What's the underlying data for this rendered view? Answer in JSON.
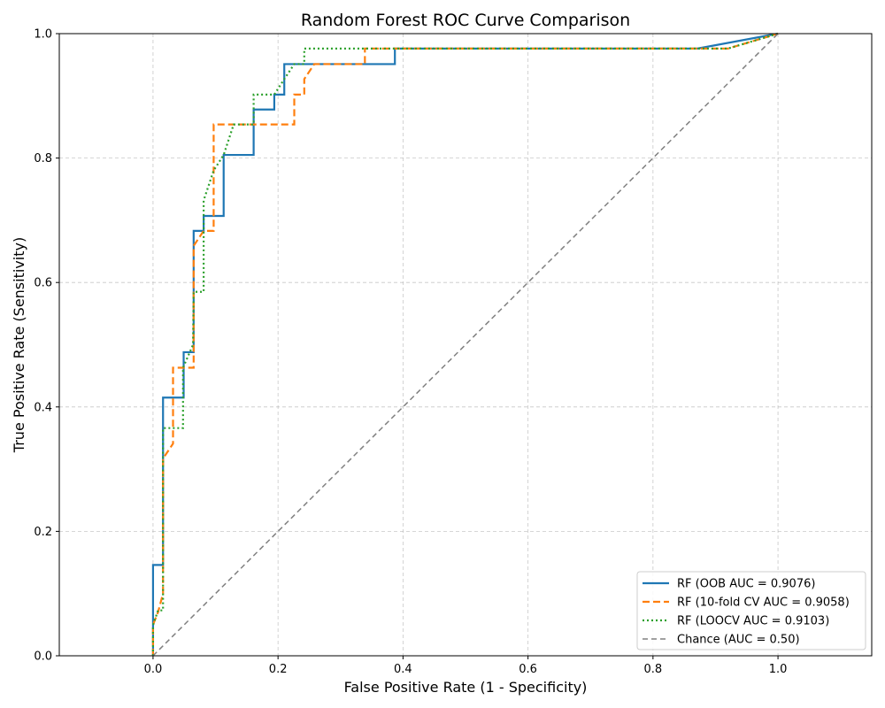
{
  "chart_data": {
    "type": "line",
    "title": "Random Forest ROC Curve Comparison",
    "xlabel": "False Positive Rate (1 - Specificity)",
    "ylabel": "True Positive Rate (Sensitivity)",
    "xlim": [
      -0.15,
      1.15
    ],
    "ylim": [
      0.0,
      1.0
    ],
    "xticks": [
      0.0,
      0.2,
      0.4,
      0.6,
      0.8,
      1.0
    ],
    "xtick_labels": [
      "0.0",
      "0.2",
      "0.4",
      "0.6",
      "0.8",
      "1.0"
    ],
    "yticks": [
      0.0,
      0.2,
      0.4,
      0.6,
      0.8,
      1.0
    ],
    "ytick_labels": [
      "0.0",
      "0.2",
      "0.4",
      "0.6",
      "0.8",
      "1.0"
    ],
    "grid": true,
    "legend_position": "bottom-right",
    "series": [
      {
        "name": "RF (OOB AUC = 0.9076)",
        "color": "#1f77b4",
        "style": "solid",
        "x": [
          0.0,
          0.0,
          0.016,
          0.016,
          0.016,
          0.049,
          0.049,
          0.065,
          0.065,
          0.081,
          0.081,
          0.113,
          0.113,
          0.161,
          0.161,
          0.194,
          0.194,
          0.21,
          0.21,
          0.387,
          0.387,
          0.871,
          1.0
        ],
        "y": [
          0.0,
          0.146,
          0.146,
          0.317,
          0.415,
          0.415,
          0.488,
          0.488,
          0.683,
          0.683,
          0.707,
          0.707,
          0.805,
          0.805,
          0.878,
          0.878,
          0.902,
          0.902,
          0.951,
          0.951,
          0.976,
          0.976,
          1.0
        ]
      },
      {
        "name": "RF (10-fold CV AUC = 0.9058)",
        "color": "#ff7f0e",
        "style": "dashed",
        "x": [
          0.0,
          0.0,
          0.008,
          0.016,
          0.016,
          0.032,
          0.032,
          0.048,
          0.065,
          0.065,
          0.081,
          0.097,
          0.097,
          0.226,
          0.226,
          0.242,
          0.242,
          0.258,
          0.339,
          0.339,
          0.92,
          1.0
        ],
        "y": [
          0.0,
          0.05,
          0.07,
          0.1,
          0.317,
          0.341,
          0.463,
          0.463,
          0.463,
          0.659,
          0.683,
          0.683,
          0.854,
          0.854,
          0.902,
          0.902,
          0.927,
          0.951,
          0.951,
          0.976,
          0.976,
          1.0
        ]
      },
      {
        "name": "RF (LOOCV AUC = 0.9103)",
        "color": "#2ca02c",
        "style": "dotted",
        "x": [
          0.0,
          0.0,
          0.008,
          0.016,
          0.016,
          0.032,
          0.048,
          0.048,
          0.064,
          0.065,
          0.065,
          0.081,
          0.081,
          0.097,
          0.113,
          0.129,
          0.161,
          0.161,
          0.194,
          0.21,
          0.226,
          0.242,
          0.242,
          0.387,
          0.387,
          0.92,
          1.0
        ],
        "y": [
          0.0,
          0.049,
          0.073,
          0.073,
          0.366,
          0.366,
          0.366,
          0.463,
          0.5,
          0.585,
          0.585,
          0.585,
          0.732,
          0.78,
          0.805,
          0.854,
          0.854,
          0.902,
          0.902,
          0.927,
          0.951,
          0.951,
          0.976,
          0.976,
          0.976,
          0.976,
          1.0
        ]
      },
      {
        "name": "Chance (AUC = 0.50)",
        "color": "#808080",
        "style": "dashed",
        "x": [
          0.0,
          1.0
        ],
        "y": [
          0.0,
          1.0
        ]
      }
    ]
  }
}
